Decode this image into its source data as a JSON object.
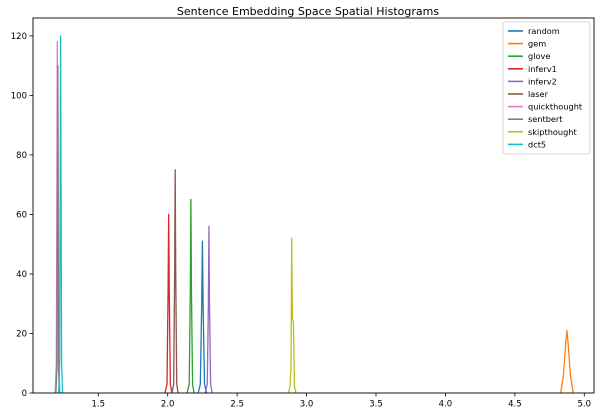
{
  "chart_data": {
    "type": "line",
    "title": "Sentence Embedding Space Spatial Histograms",
    "xlabel": "",
    "ylabel": "",
    "xlim": [
      1.03,
      5.07
    ],
    "ylim": [
      0,
      126
    ],
    "x_ticks": [
      1.5,
      2.0,
      2.5,
      3.0,
      3.5,
      4.0,
      4.5,
      5.0
    ],
    "x_tick_labels": [
      "1.5",
      "2.0",
      "2.5",
      "3.0",
      "3.5",
      "4.0",
      "4.5",
      "5.0"
    ],
    "y_ticks": [
      0,
      20,
      40,
      60,
      80,
      100,
      120
    ],
    "y_tick_labels": [
      "0",
      "20",
      "40",
      "60",
      "80",
      "100",
      "120"
    ],
    "grid": false,
    "legend_position": "upper right",
    "series": [
      {
        "name": "random",
        "color": "#1f77b4",
        "x": [
          2.22,
          2.235,
          2.245,
          2.25,
          2.255,
          2.265,
          2.28
        ],
        "y": [
          0,
          3,
          30,
          51,
          30,
          3,
          0
        ]
      },
      {
        "name": "gem",
        "color": "#ff7f0e",
        "x": [
          4.83,
          4.85,
          4.865,
          4.875,
          4.885,
          4.9,
          4.92
        ],
        "y": [
          0,
          6,
          16,
          21,
          16,
          6,
          0
        ]
      },
      {
        "name": "glove",
        "color": "#2ca02c",
        "x": [
          2.14,
          2.155,
          2.163,
          2.167,
          2.171,
          2.179,
          2.19
        ],
        "y": [
          0,
          3,
          35,
          65,
          35,
          3,
          0
        ]
      },
      {
        "name": "inferv1",
        "color": "#d62728",
        "x": [
          1.98,
          1.995,
          2.003,
          2.007,
          2.011,
          2.019,
          2.03
        ],
        "y": [
          0,
          3,
          35,
          60,
          35,
          3,
          0
        ]
      },
      {
        "name": "inferv2",
        "color": "#9467bd",
        "x": [
          2.27,
          2.285,
          2.293,
          2.297,
          2.301,
          2.309,
          2.32
        ],
        "y": [
          0,
          3,
          30,
          56,
          30,
          3,
          0
        ]
      },
      {
        "name": "laser",
        "color": "#8c564b",
        "x": [
          2.03,
          2.043,
          2.05,
          2.054,
          2.058,
          2.065,
          2.075
        ],
        "y": [
          0,
          3,
          40,
          75,
          40,
          3,
          0
        ]
      },
      {
        "name": "quickthought",
        "color": "#e377c2",
        "x": [
          1.19,
          1.198,
          1.202,
          1.205,
          1.208,
          1.212,
          1.22
        ],
        "y": [
          0,
          10,
          70,
          118,
          70,
          10,
          0
        ]
      },
      {
        "name": "sentbert",
        "color": "#7f7f7f",
        "x": [
          1.195,
          1.202,
          1.206,
          1.209,
          1.212,
          1.216,
          1.223
        ],
        "y": [
          0,
          8,
          60,
          110,
          60,
          8,
          0
        ]
      },
      {
        "name": "skipthought",
        "color": "#bcbd22",
        "x": [
          2.87,
          2.88,
          2.888,
          2.893,
          2.898,
          2.905,
          2.913,
          2.925
        ],
        "y": [
          0,
          2,
          8,
          52,
          25,
          24,
          2,
          0
        ]
      },
      {
        "name": "dct5",
        "color": "#17becf",
        "x": [
          1.215,
          1.222,
          1.226,
          1.229,
          1.232,
          1.236,
          1.243
        ],
        "y": [
          0,
          10,
          70,
          120,
          70,
          10,
          0
        ]
      }
    ]
  }
}
